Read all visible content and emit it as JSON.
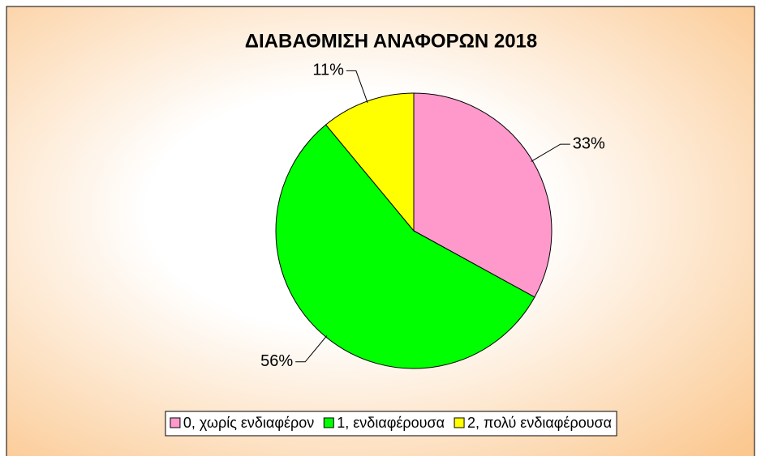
{
  "chart_data": {
    "type": "pie",
    "title": "ΔΙΑΒΑΘΜΙΣΗ ΑΝΑΦΟΡΩΝ 2018",
    "categories": [
      "0, χωρίς ενδιαφέρον",
      "1, ενδιαφέρουσα",
      "2, πολύ ενδιαφέρουσα"
    ],
    "values": [
      33,
      56,
      11
    ],
    "value_labels": [
      "33%",
      "56%",
      "11%"
    ],
    "colors": [
      "#ff99cc",
      "#00ff00",
      "#ffff00"
    ],
    "legend": "bottom"
  }
}
